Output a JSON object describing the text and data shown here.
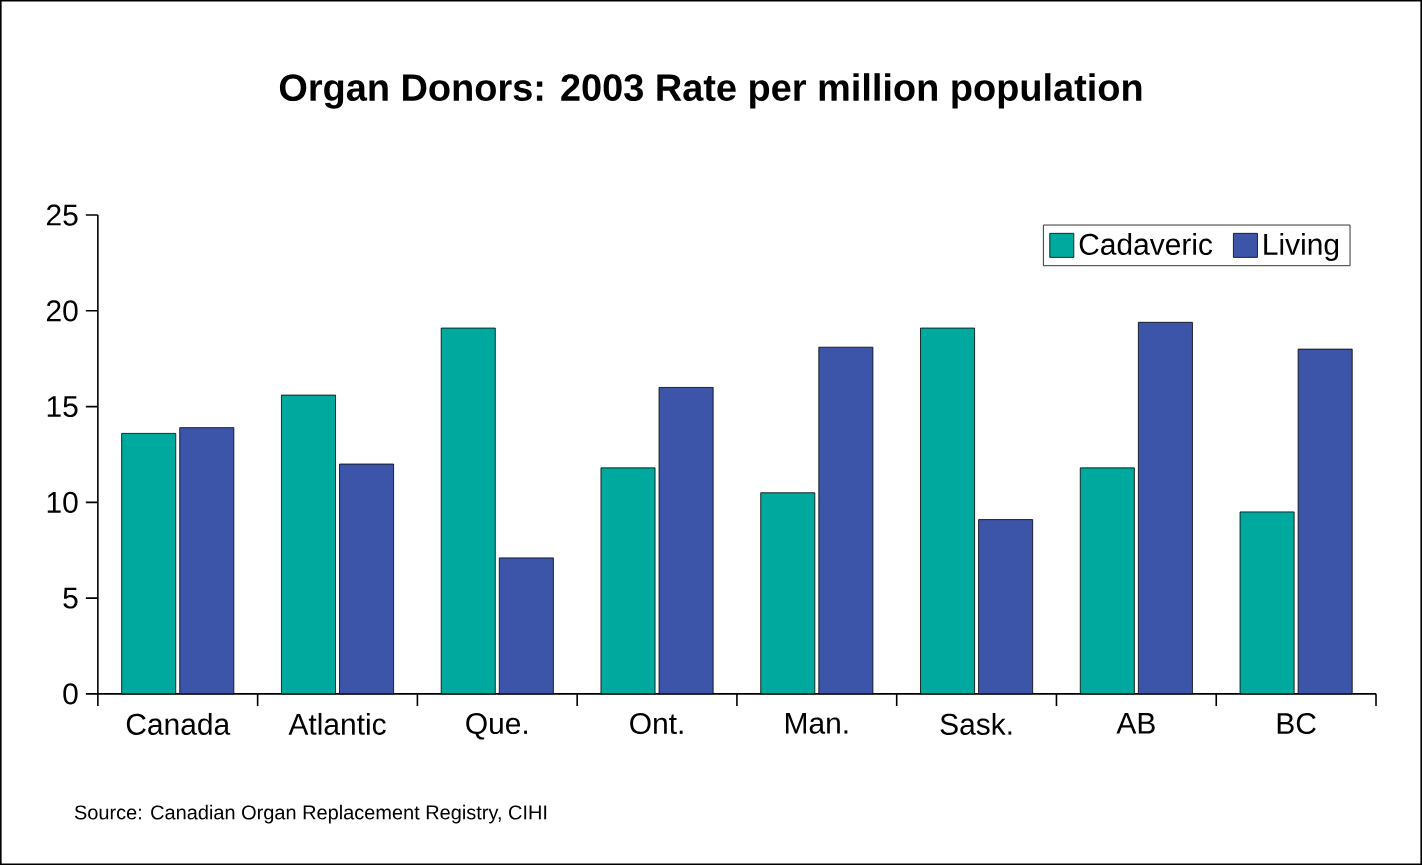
{
  "chart_data": {
    "type": "bar",
    "title": "Organ Donors: 2003 Rate per million population",
    "categories": [
      "Canada",
      "Atlantic",
      "Que.",
      "Ont.",
      "Man.",
      "Sask.",
      "AB",
      "BC"
    ],
    "series": [
      {
        "name": "Cadaveric",
        "color": "#00a99d",
        "values": [
          13.6,
          15.6,
          19.1,
          11.8,
          10.5,
          19.1,
          11.8,
          9.5
        ]
      },
      {
        "name": "Living",
        "color": "#3d55a8",
        "values": [
          13.9,
          12.0,
          7.1,
          16.0,
          18.1,
          9.1,
          19.4,
          18.0
        ]
      }
    ],
    "ylim": [
      0,
      25
    ],
    "yticks": [
      0,
      5,
      10,
      15,
      20,
      25
    ],
    "grid": false,
    "legend": "top right",
    "annotations": [
      "Source: Canadian Organ Replacement Registry, CIHI"
    ]
  }
}
